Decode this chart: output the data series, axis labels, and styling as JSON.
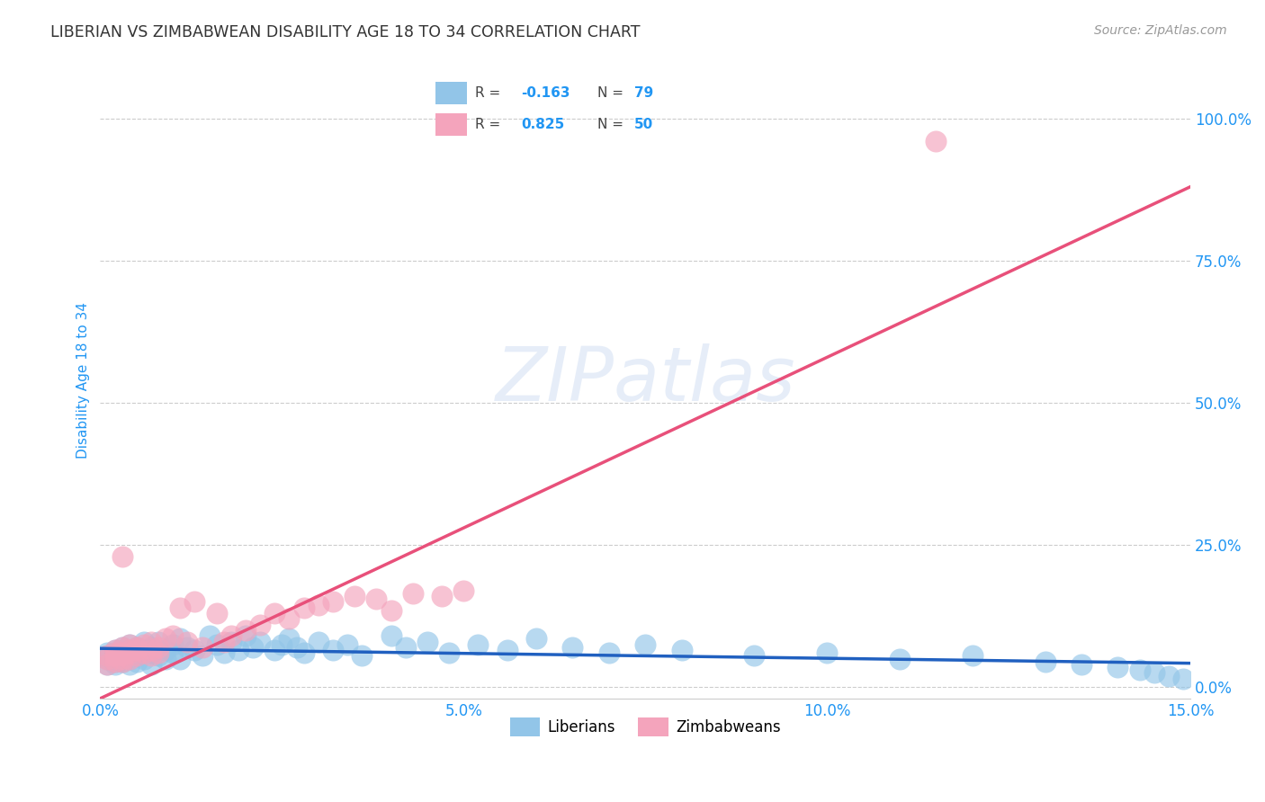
{
  "title": "LIBERIAN VS ZIMBABWEAN DISABILITY AGE 18 TO 34 CORRELATION CHART",
  "source": "Source: ZipAtlas.com",
  "ylabel": "Disability Age 18 to 34",
  "xlim": [
    0.0,
    0.15
  ],
  "ylim": [
    -0.02,
    1.1
  ],
  "yticks": [
    0.0,
    0.25,
    0.5,
    0.75,
    1.0
  ],
  "ytick_labels": [
    "0.0%",
    "25.0%",
    "50.0%",
    "75.0%",
    "100.0%"
  ],
  "xticks": [
    0.0,
    0.05,
    0.1,
    0.15
  ],
  "xtick_labels": [
    "0.0%",
    "5.0%",
    "10.0%",
    "15.0%"
  ],
  "liberian_R": -0.163,
  "liberian_N": 79,
  "zimbabwean_R": 0.825,
  "zimbabwean_N": 50,
  "liberian_color": "#92C5E8",
  "zimbabwean_color": "#F4A4BC",
  "liberian_line_color": "#2060C0",
  "zimbabwean_line_color": "#E8507A",
  "background_color": "#ffffff",
  "grid_color": "#cccccc",
  "watermark": "ZIPatlas",
  "title_color": "#333333",
  "axis_label_color": "#2196F3",
  "tick_label_color": "#2196F3",
  "lib_line_x0": 0.0,
  "lib_line_y0": 0.068,
  "lib_line_x1": 0.15,
  "lib_line_y1": 0.042,
  "zim_line_x0": 0.0,
  "zim_line_y0": -0.02,
  "zim_line_x1": 0.15,
  "zim_line_y1": 0.88,
  "liberian_x": [
    0.001,
    0.001,
    0.001,
    0.001,
    0.002,
    0.002,
    0.002,
    0.002,
    0.002,
    0.003,
    0.003,
    0.003,
    0.003,
    0.003,
    0.004,
    0.004,
    0.004,
    0.004,
    0.004,
    0.005,
    0.005,
    0.005,
    0.005,
    0.006,
    0.006,
    0.006,
    0.007,
    0.007,
    0.007,
    0.008,
    0.008,
    0.009,
    0.009,
    0.01,
    0.01,
    0.011,
    0.011,
    0.012,
    0.013,
    0.014,
    0.015,
    0.016,
    0.017,
    0.018,
    0.019,
    0.02,
    0.021,
    0.022,
    0.024,
    0.025,
    0.026,
    0.027,
    0.028,
    0.03,
    0.032,
    0.034,
    0.036,
    0.04,
    0.042,
    0.045,
    0.048,
    0.052,
    0.056,
    0.06,
    0.065,
    0.07,
    0.075,
    0.08,
    0.09,
    0.1,
    0.11,
    0.12,
    0.13,
    0.135,
    0.14,
    0.143,
    0.145,
    0.147,
    0.149
  ],
  "liberian_y": [
    0.05,
    0.06,
    0.04,
    0.055,
    0.045,
    0.065,
    0.05,
    0.04,
    0.06,
    0.055,
    0.07,
    0.045,
    0.06,
    0.05,
    0.055,
    0.065,
    0.04,
    0.075,
    0.05,
    0.06,
    0.045,
    0.07,
    0.055,
    0.065,
    0.05,
    0.08,
    0.06,
    0.04,
    0.07,
    0.055,
    0.08,
    0.065,
    0.05,
    0.075,
    0.06,
    0.085,
    0.05,
    0.07,
    0.065,
    0.055,
    0.09,
    0.075,
    0.06,
    0.08,
    0.065,
    0.09,
    0.07,
    0.08,
    0.065,
    0.075,
    0.085,
    0.07,
    0.06,
    0.08,
    0.065,
    0.075,
    0.055,
    0.09,
    0.07,
    0.08,
    0.06,
    0.075,
    0.065,
    0.085,
    0.07,
    0.06,
    0.075,
    0.065,
    0.055,
    0.06,
    0.05,
    0.055,
    0.045,
    0.04,
    0.035,
    0.03,
    0.025,
    0.02,
    0.015
  ],
  "zimbabwean_x": [
    0.001,
    0.001,
    0.001,
    0.002,
    0.002,
    0.002,
    0.002,
    0.003,
    0.003,
    0.003,
    0.003,
    0.003,
    0.004,
    0.004,
    0.004,
    0.004,
    0.005,
    0.005,
    0.005,
    0.006,
    0.006,
    0.007,
    0.007,
    0.007,
    0.008,
    0.008,
    0.009,
    0.01,
    0.011,
    0.012,
    0.013,
    0.014,
    0.016,
    0.017,
    0.018,
    0.02,
    0.022,
    0.024,
    0.026,
    0.028,
    0.03,
    0.032,
    0.035,
    0.038,
    0.04,
    0.043,
    0.047,
    0.05,
    0.115,
    0.003
  ],
  "zimbabwean_y": [
    0.04,
    0.05,
    0.055,
    0.045,
    0.06,
    0.055,
    0.065,
    0.05,
    0.06,
    0.07,
    0.045,
    0.055,
    0.065,
    0.05,
    0.075,
    0.06,
    0.055,
    0.065,
    0.07,
    0.06,
    0.075,
    0.065,
    0.055,
    0.08,
    0.07,
    0.06,
    0.085,
    0.09,
    0.14,
    0.08,
    0.15,
    0.07,
    0.13,
    0.08,
    0.09,
    0.1,
    0.11,
    0.13,
    0.12,
    0.14,
    0.145,
    0.15,
    0.16,
    0.155,
    0.135,
    0.165,
    0.16,
    0.17,
    0.96,
    0.23
  ]
}
